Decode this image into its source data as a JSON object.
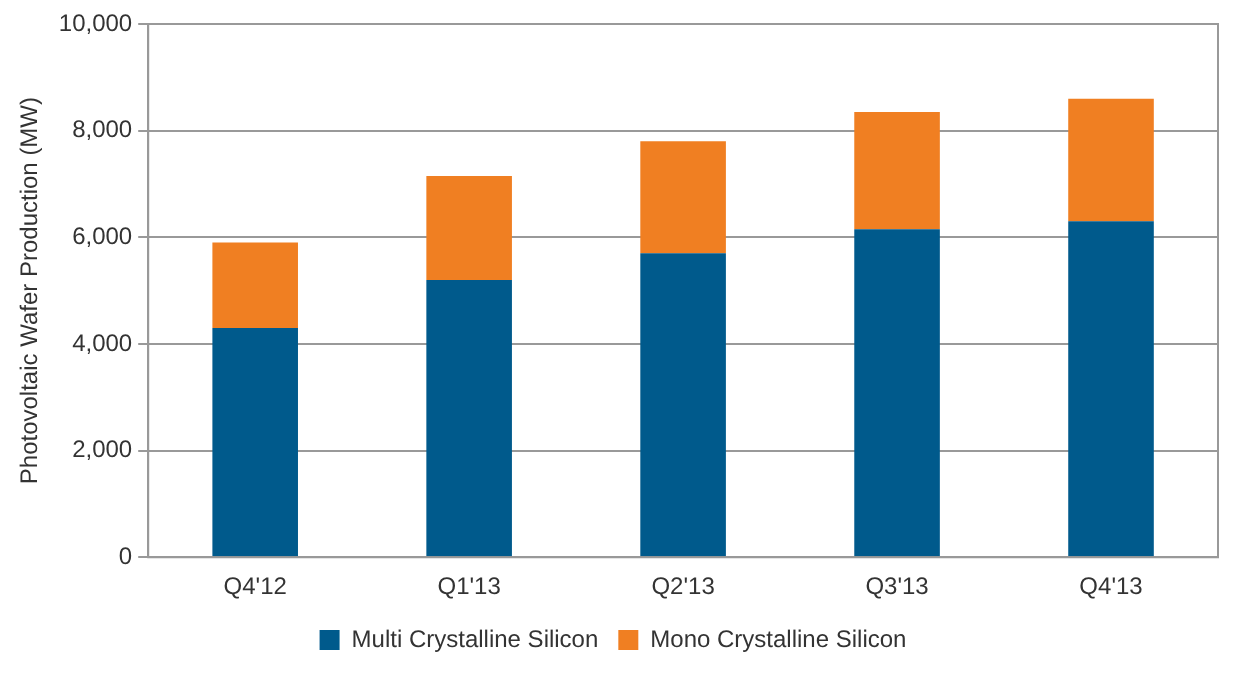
{
  "chart_data": {
    "type": "bar",
    "stacked": true,
    "ylabel": "Photovoltaic Wafer Production (MW)",
    "categories": [
      "Q4'12",
      "Q1'13",
      "Q2'13",
      "Q3'13",
      "Q4'13"
    ],
    "series": [
      {
        "name": "Multi Crystalline Silicon",
        "color": "#005a8c",
        "values": [
          4300,
          5200,
          5700,
          6150,
          6300
        ]
      },
      {
        "name": "Mono Crystalline Silicon",
        "color": "#f07f22",
        "values": [
          1600,
          1950,
          2100,
          2200,
          2300
        ]
      }
    ],
    "ylim": [
      0,
      10000
    ],
    "yticks": [
      {
        "value": 0,
        "label": "0"
      },
      {
        "value": 2000,
        "label": "2,000"
      },
      {
        "value": 4000,
        "label": "4,000"
      },
      {
        "value": 6000,
        "label": "6,000"
      },
      {
        "value": 8000,
        "label": "8,000"
      },
      {
        "value": 10000,
        "label": "10,000"
      }
    ],
    "grid": "y",
    "legend": "bottom"
  }
}
